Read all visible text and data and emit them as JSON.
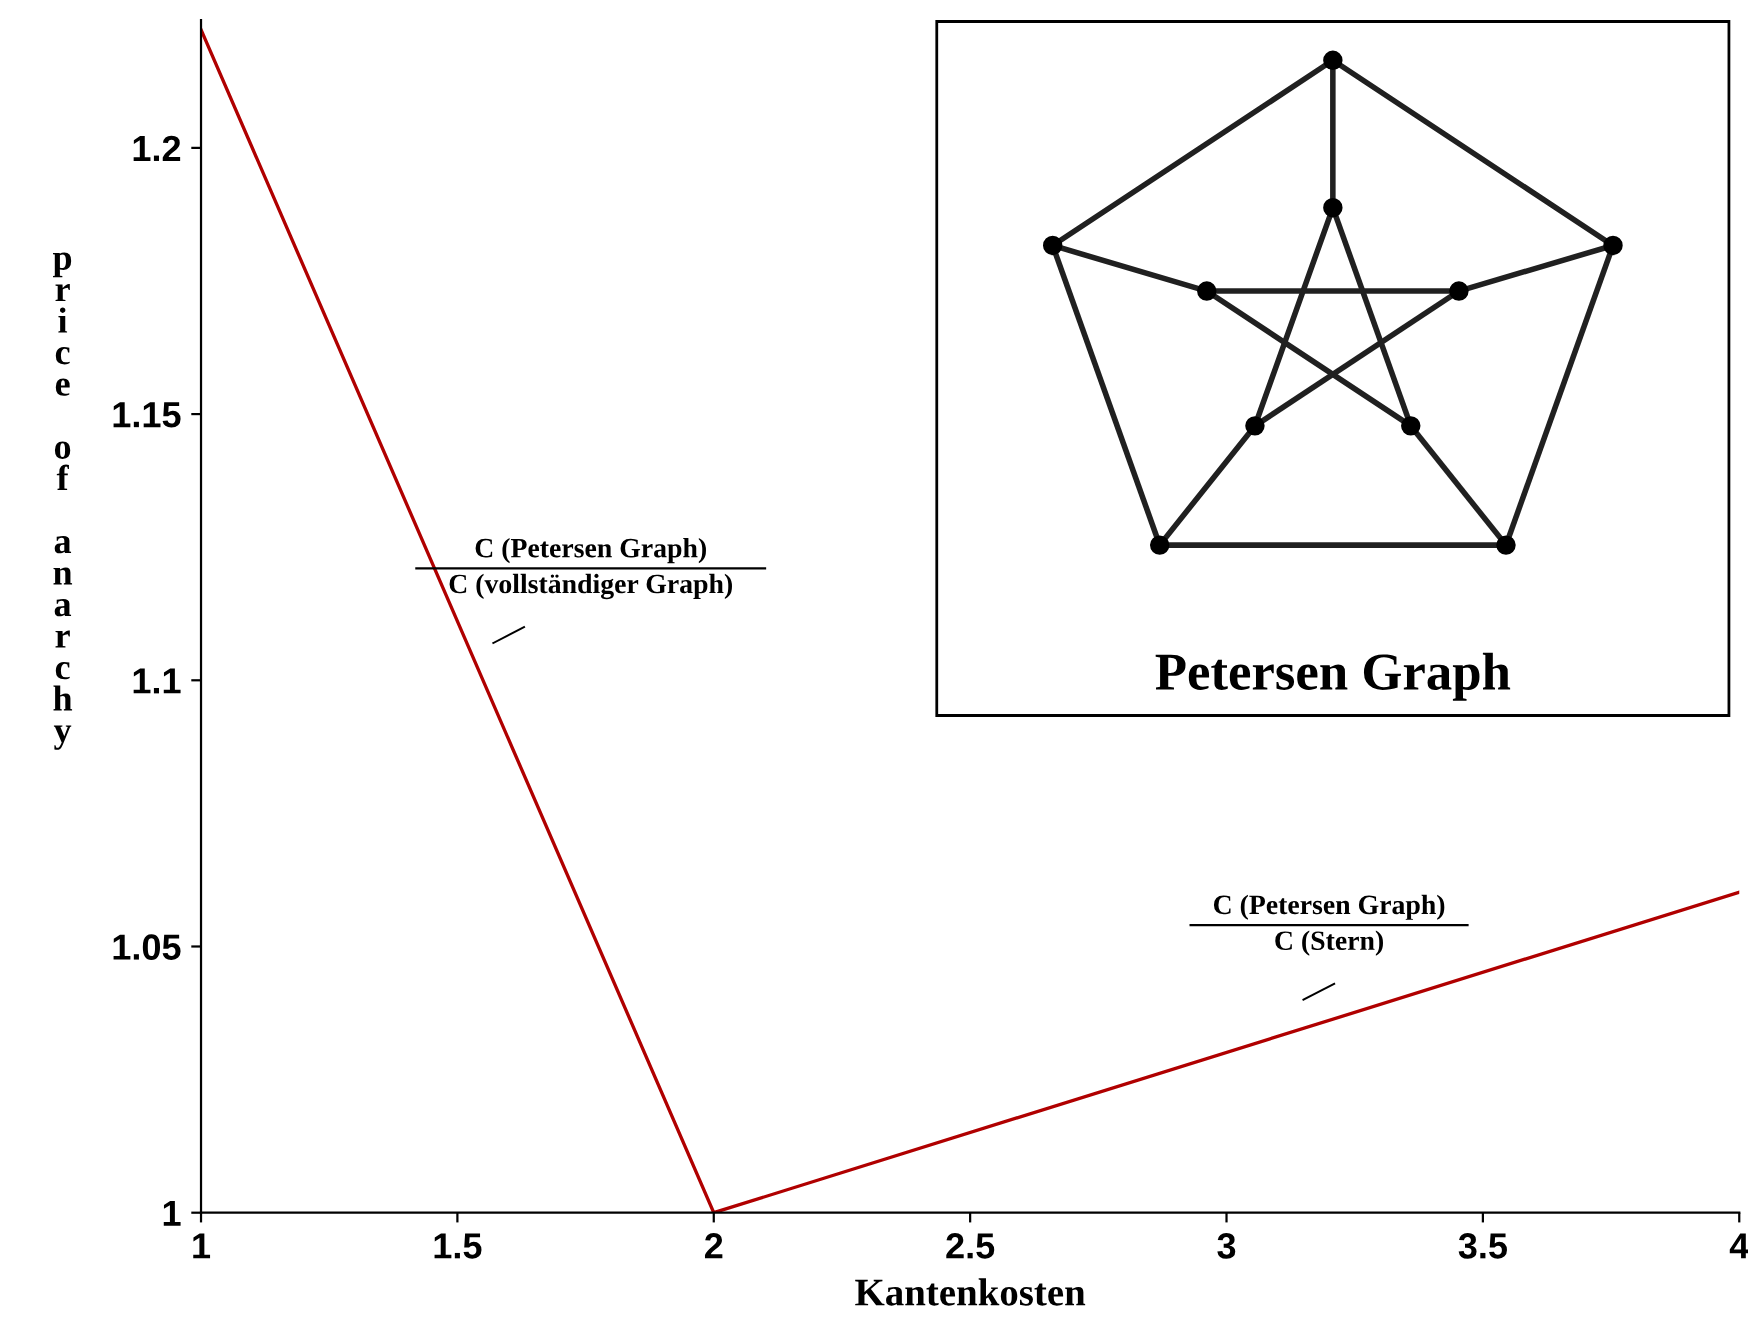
{
  "chart_data": {
    "type": "line",
    "xlabel": "Kantenkosten",
    "ylabel": "price of anarchy",
    "x": [
      1,
      2,
      4
    ],
    "series": [
      {
        "color": "#b00000",
        "values": [
          1.2222,
          1.0,
          1.0602
        ]
      }
    ],
    "xlim": [
      1,
      4
    ],
    "ylim": [
      1,
      1.224
    ],
    "xticks": [
      1,
      1.5,
      2,
      2.5,
      3,
      3.5,
      4
    ],
    "yticks": [
      1,
      1.05,
      1.1,
      1.15,
      1.2
    ],
    "grid": false,
    "marker": "none",
    "line_style": "solid",
    "annotations": [
      "C (Petersen Graph)\nC (vollständiger Graph)",
      "C (Petersen Graph)\nC (Stern)",
      "Petersen Graph"
    ]
  }
}
